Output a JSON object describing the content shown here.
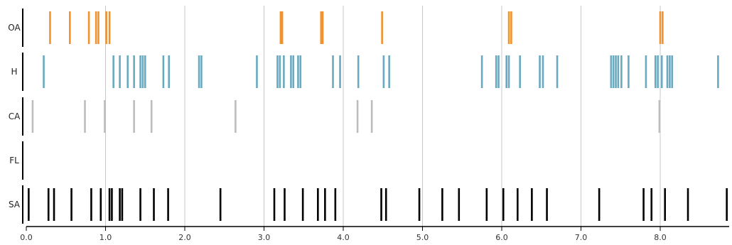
{
  "chart_data": {
    "type": "event-raster",
    "xlim": [
      0,
      8.85
    ],
    "x_ticks": [
      0,
      1,
      2,
      3,
      4,
      5,
      6,
      7,
      8
    ],
    "x_tick_labels": [
      "0.0",
      "1.0",
      "2.0",
      "3.0",
      "4.0",
      "5.0",
      "6.0",
      "7.0",
      "8.0"
    ],
    "grid": "vertical",
    "colors": {
      "grid": "#c8c8c8",
      "axis": "#000000"
    },
    "series": [
      {
        "label": "OA",
        "color": "#f0922d",
        "events": [
          0.3,
          0.55,
          0.79,
          0.88,
          0.91,
          1.01,
          1.05,
          3.21,
          3.23,
          3.72,
          3.74,
          4.49,
          6.09,
          6.12,
          8.0,
          8.03
        ]
      },
      {
        "label": "H",
        "color": "#6aaac0",
        "events": [
          0.22,
          1.1,
          1.18,
          1.28,
          1.36,
          1.44,
          1.47,
          1.5,
          1.73,
          1.8,
          2.18,
          2.21,
          2.91,
          3.17,
          3.2,
          3.25,
          3.34,
          3.37,
          3.43,
          3.46,
          3.87,
          3.96,
          4.19,
          4.51,
          4.58,
          5.75,
          5.93,
          5.96,
          6.06,
          6.09,
          6.23,
          6.48,
          6.52,
          6.7,
          7.38,
          7.41,
          7.44,
          7.47,
          7.51,
          7.6,
          7.82,
          7.94,
          7.97,
          8.02,
          8.09,
          8.12,
          8.15,
          8.73
        ]
      },
      {
        "label": "CA",
        "color": "#bdbdbd",
        "events": [
          0.08,
          0.74,
          0.99,
          1.36,
          1.58,
          2.64,
          4.18,
          4.36,
          7.99
        ]
      },
      {
        "label": "FL",
        "color": "#000000",
        "events": []
      },
      {
        "label": "SA",
        "color": "#000000",
        "events": [
          0.03,
          0.28,
          0.35,
          0.57,
          0.82,
          0.94,
          1.05,
          1.08,
          1.18,
          1.21,
          1.44,
          1.61,
          1.79,
          2.45,
          3.13,
          3.26,
          3.49,
          3.68,
          3.77,
          3.9,
          4.48,
          4.54,
          4.96,
          5.25,
          5.46,
          5.81,
          6.02,
          6.2,
          6.38,
          6.57,
          7.23,
          7.79,
          7.89,
          8.06,
          8.35,
          8.84
        ]
      }
    ]
  }
}
